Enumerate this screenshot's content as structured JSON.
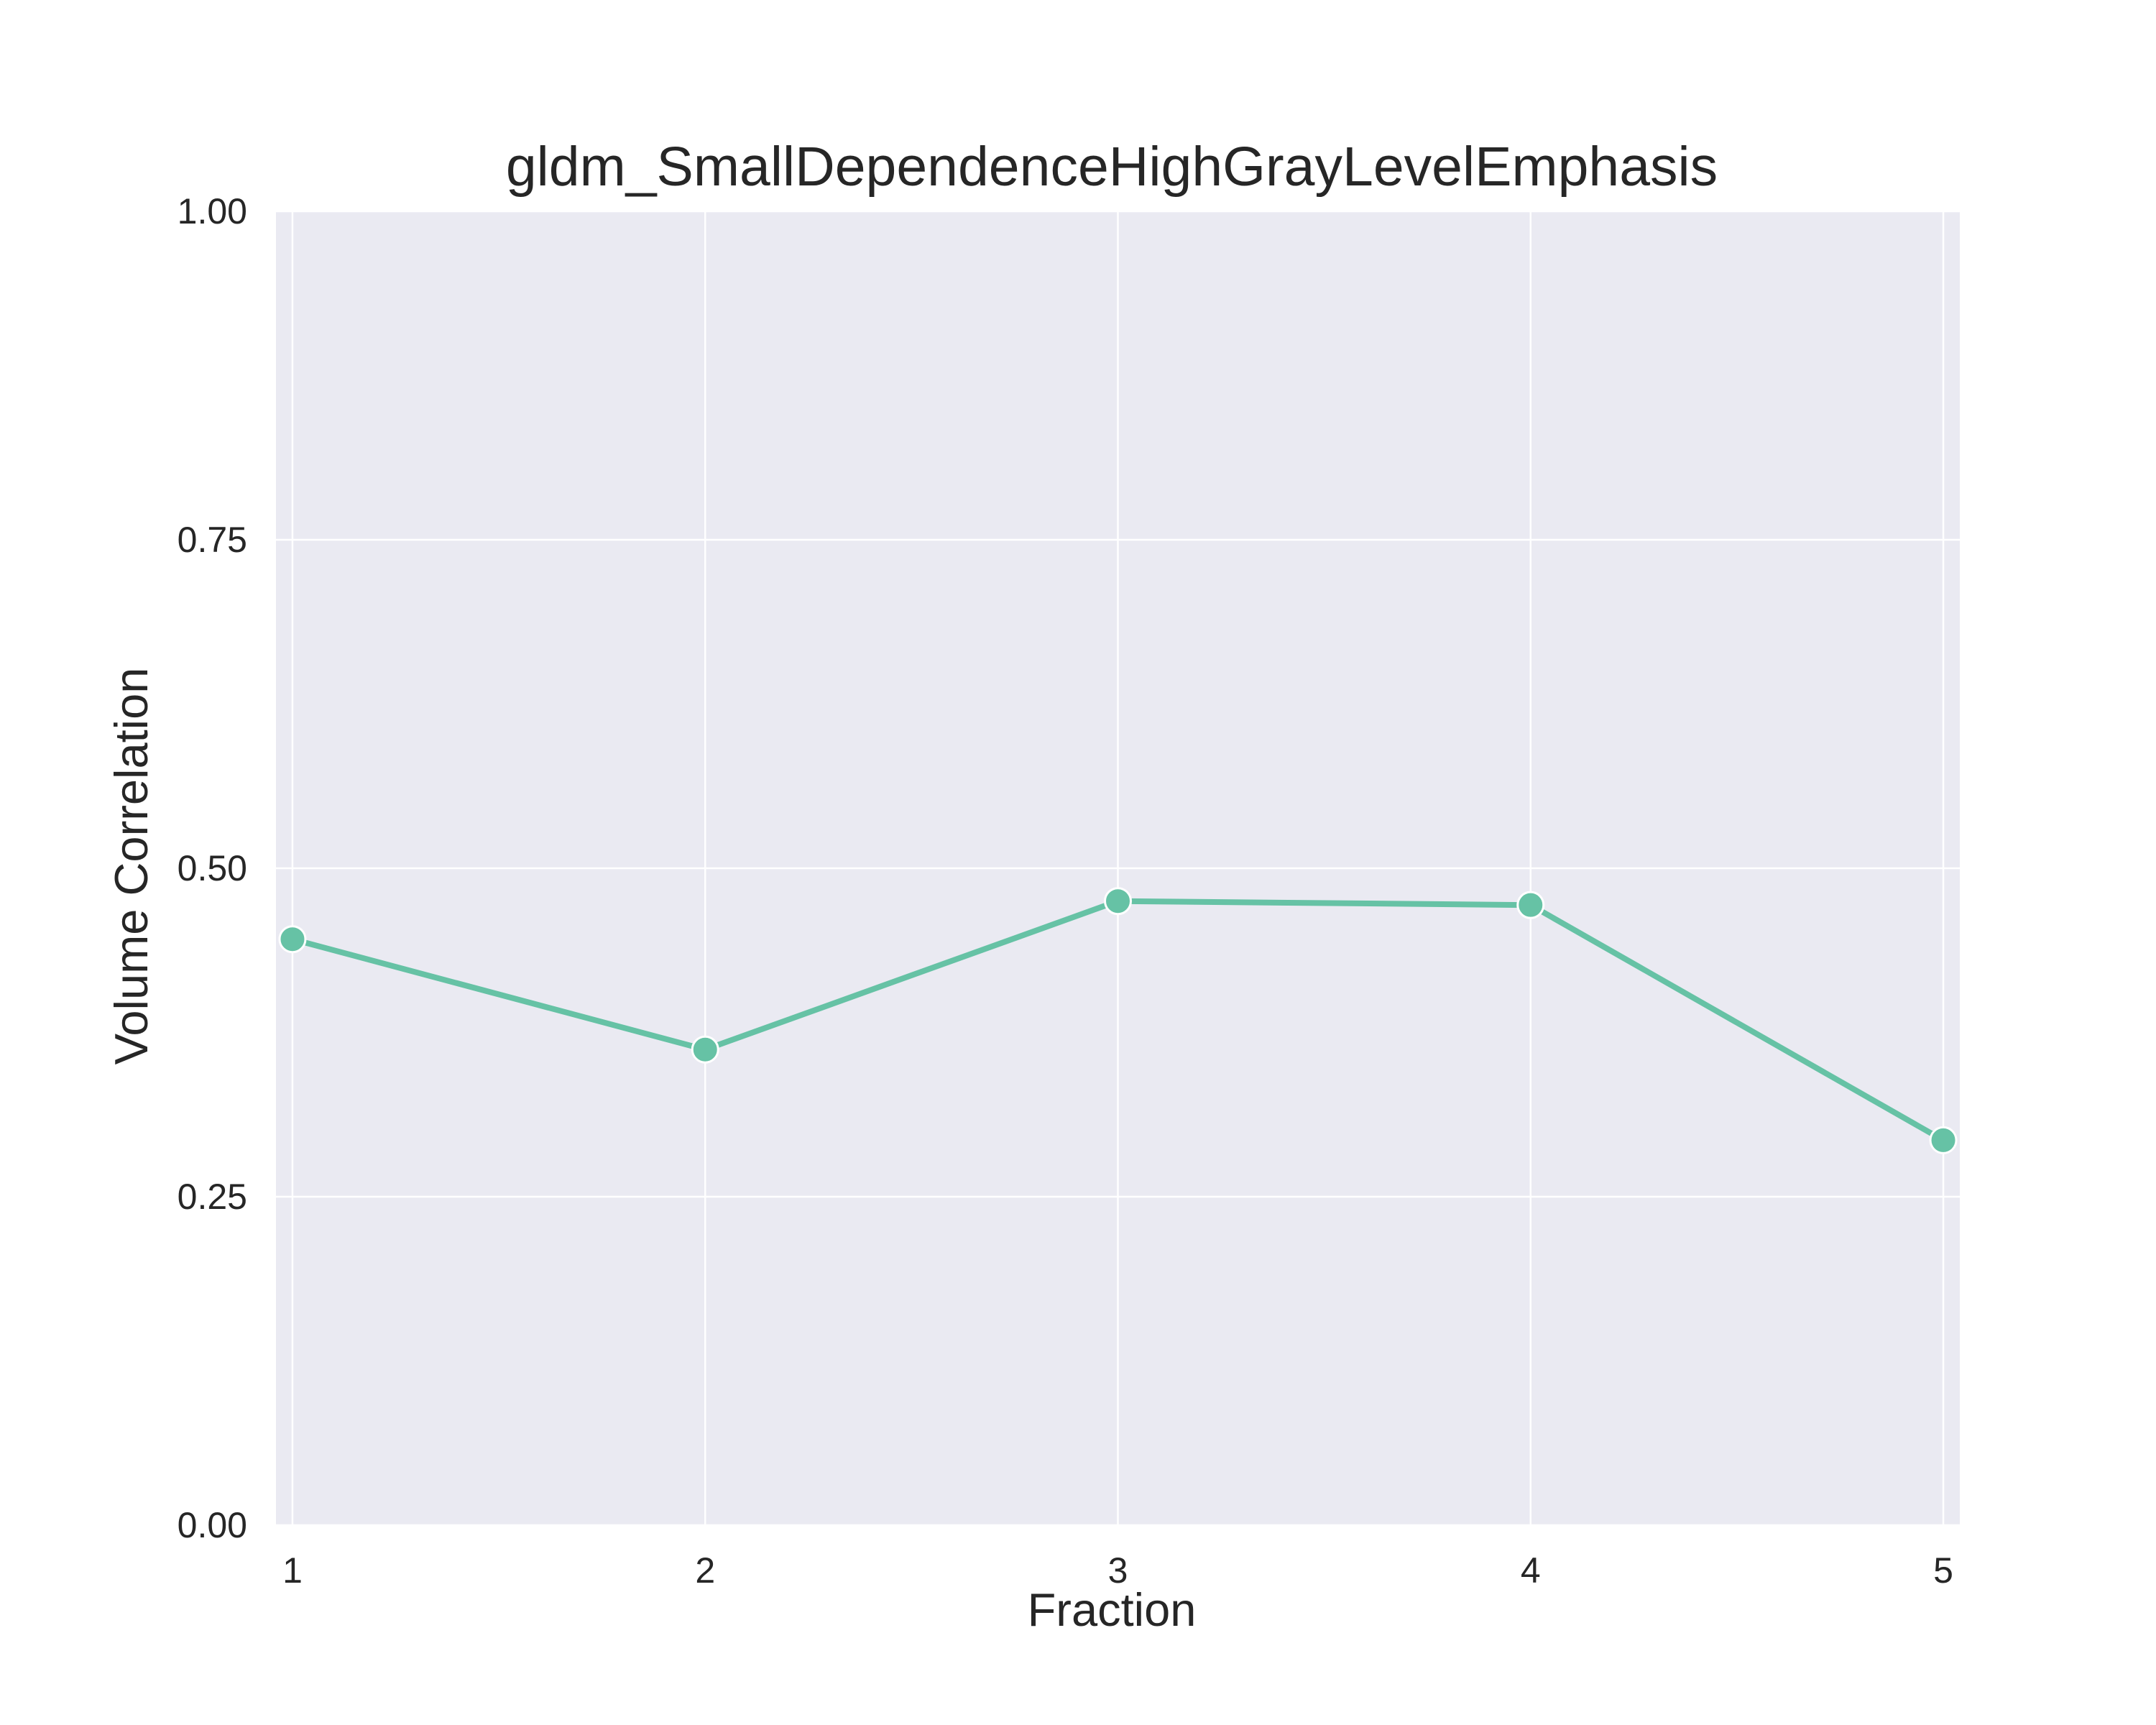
{
  "colors": {
    "background": "#ffffff",
    "plot_background": "#eaeaf2",
    "grid": "#ffffff",
    "series": "#66c2a5",
    "text": "#262626"
  },
  "chart_data": {
    "type": "line",
    "title": "gldm_SmallDependenceHighGrayLevelEmphasis",
    "xlabel": "Fraction",
    "ylabel": "Volume Correlation",
    "x": [
      1,
      2,
      3,
      4,
      5
    ],
    "x_tick_labels": [
      "1",
      "2",
      "3",
      "4",
      "5"
    ],
    "xlim": [
      0.96,
      5.04
    ],
    "ylim": [
      0,
      1
    ],
    "y_ticks": [
      0,
      0.25,
      0.5,
      0.75,
      1
    ],
    "y_tick_labels": [
      "0.00",
      "0.25",
      "0.50",
      "0.75",
      "1.00"
    ],
    "grid": true,
    "legend": "none",
    "marker": "circle",
    "series": [
      {
        "values": [
          0.446,
          0.362,
          0.475,
          0.472,
          0.293
        ]
      }
    ]
  }
}
